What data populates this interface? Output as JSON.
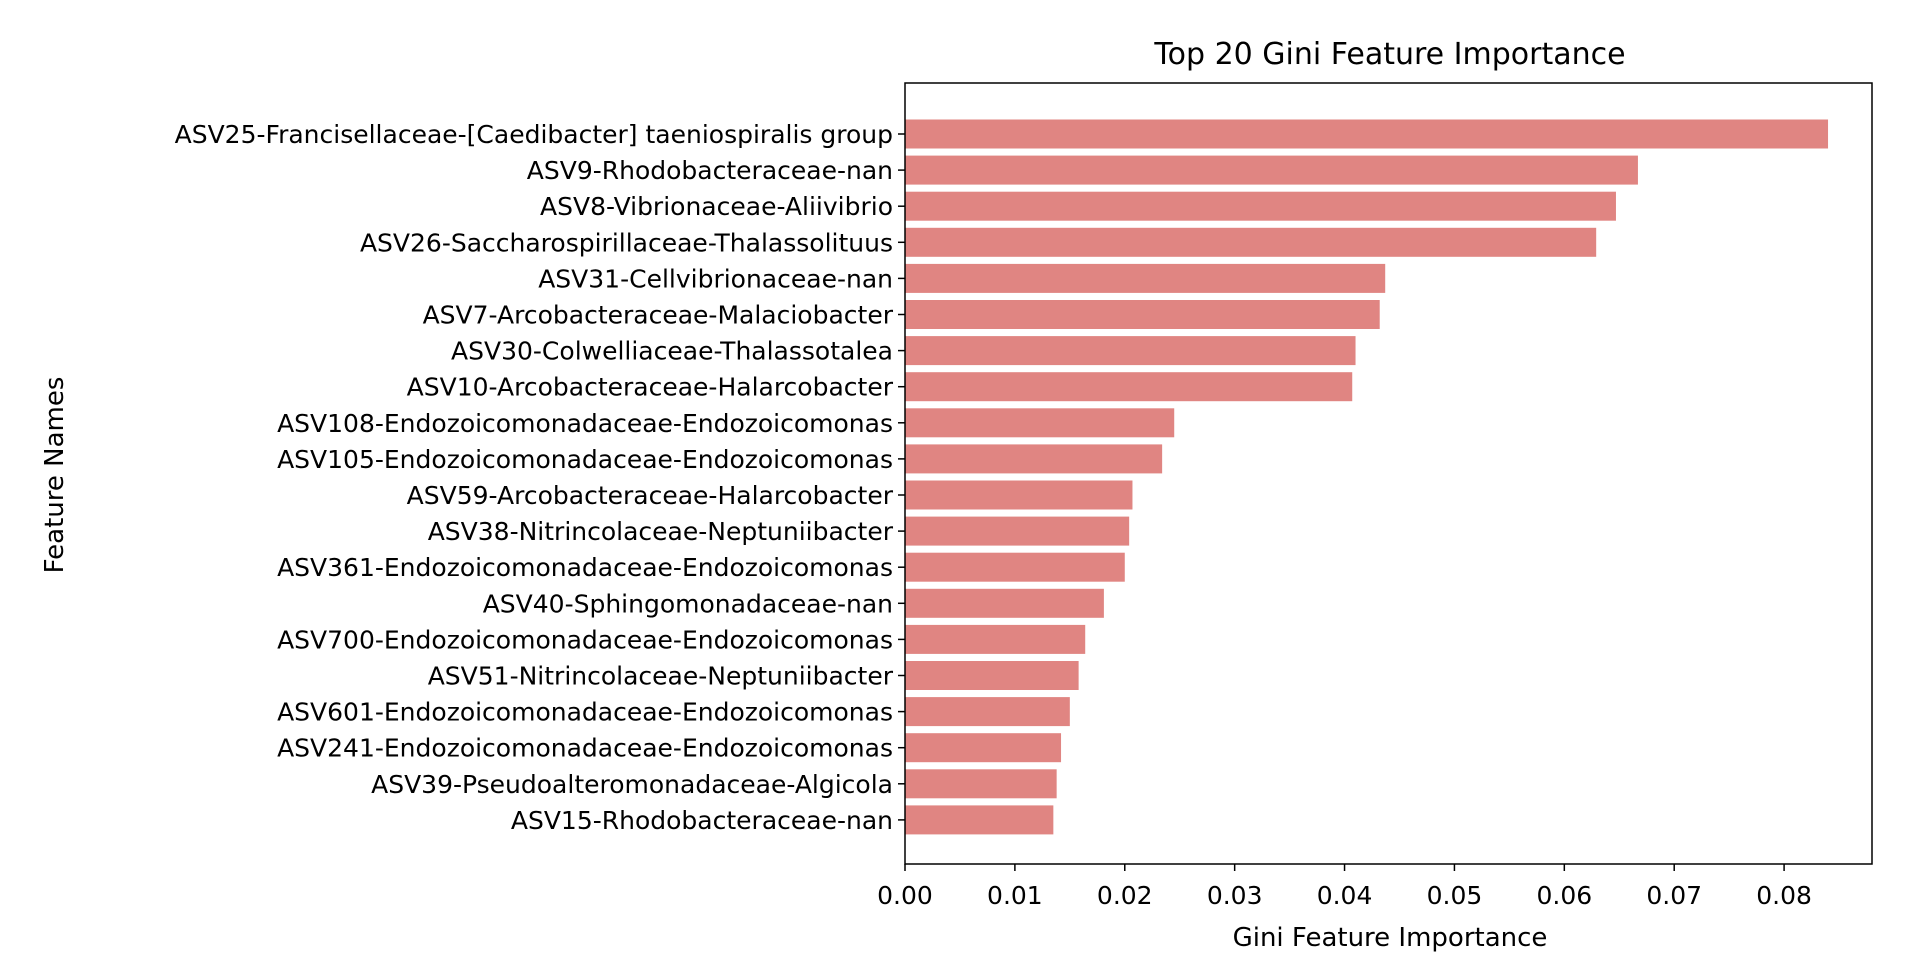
{
  "chart_data": {
    "type": "bar",
    "orientation": "horizontal",
    "title": "Top 20 Gini Feature Importance",
    "xlabel": "Gini Feature Importance",
    "ylabel": "Feature Names",
    "xlim": [
      0,
      0.088
    ],
    "x_ticks": [
      "0.00",
      "0.01",
      "0.02",
      "0.03",
      "0.04",
      "0.05",
      "0.06",
      "0.07",
      "0.08"
    ],
    "bar_color": "#e08582",
    "grid": false,
    "categories": [
      "ASV25-Francisellaceae-[Caedibacter] taeniospiralis group",
      "ASV9-Rhodobacteraceae-nan",
      "ASV8-Vibrionaceae-Aliivibrio",
      "ASV26-Saccharospirillaceae-Thalassolituus",
      "ASV31-Cellvibrionaceae-nan",
      "ASV7-Arcobacteraceae-Malaciobacter",
      "ASV30-Colwelliaceae-Thalassotalea",
      "ASV10-Arcobacteraceae-Halarcobacter",
      "ASV108-Endozoicomonadaceae-Endozoicomonas",
      "ASV105-Endozoicomonadaceae-Endozoicomonas",
      "ASV59-Arcobacteraceae-Halarcobacter",
      "ASV38-Nitrincolaceae-Neptuniibacter",
      "ASV361-Endozoicomonadaceae-Endozoicomonas",
      "ASV40-Sphingomonadaceae-nan",
      "ASV700-Endozoicomonadaceae-Endozoicomonas",
      "ASV51-Nitrincolaceae-Neptuniibacter",
      "ASV601-Endozoicomonadaceae-Endozoicomonas",
      "ASV241-Endozoicomonadaceae-Endozoicomonas",
      "ASV39-Pseudoalteromonadaceae-Algicola",
      "ASV15-Rhodobacteraceae-nan"
    ],
    "values": [
      0.084,
      0.0667,
      0.0647,
      0.0629,
      0.0437,
      0.0432,
      0.041,
      0.0407,
      0.0245,
      0.0234,
      0.0207,
      0.0204,
      0.02,
      0.0181,
      0.0164,
      0.0158,
      0.015,
      0.0142,
      0.0138,
      0.0135
    ]
  }
}
